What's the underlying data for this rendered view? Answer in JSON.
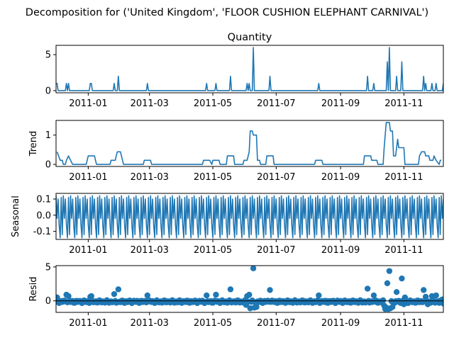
{
  "figure": {
    "suptitle": "Decomposition for ('United Kingdom', 'FLOOR CUSHION ELEPHANT CARNIVAL')"
  },
  "colors": {
    "series": "#1f77b4",
    "axis": "#000000",
    "background": "#ffffff"
  },
  "chart_data": [
    {
      "type": "line",
      "title": "Quantity",
      "ylabel": "",
      "xlim": [
        "2010-12-01",
        "2011-12-09"
      ],
      "ylim": [
        -0.3,
        6.3
      ],
      "yticks": [
        0,
        5
      ],
      "xticks": [
        "2011-01",
        "2011-03",
        "2011-05",
        "2011-07",
        "2011-09",
        "2011-11"
      ],
      "baseline": 0,
      "points": [
        [
          "2010-12-01",
          1
        ],
        [
          "2010-12-02",
          1
        ],
        [
          "2010-12-03",
          0
        ],
        [
          "2010-12-10",
          0
        ],
        [
          "2010-12-11",
          1
        ],
        [
          "2010-12-12",
          0
        ],
        [
          "2010-12-13",
          1
        ],
        [
          "2010-12-14",
          0
        ],
        [
          "2011-01-02",
          0
        ],
        [
          "2011-01-03",
          1
        ],
        [
          "2011-01-04",
          1
        ],
        [
          "2011-01-05",
          0
        ],
        [
          "2011-01-25",
          0
        ],
        [
          "2011-01-26",
          1
        ],
        [
          "2011-01-27",
          0
        ],
        [
          "2011-01-29",
          0
        ],
        [
          "2011-01-30",
          2
        ],
        [
          "2011-01-31",
          0
        ],
        [
          "2011-02-26",
          0
        ],
        [
          "2011-02-27",
          1
        ],
        [
          "2011-02-28",
          0
        ],
        [
          "2011-04-24",
          0
        ],
        [
          "2011-04-25",
          1
        ],
        [
          "2011-04-26",
          0
        ],
        [
          "2011-05-03",
          0
        ],
        [
          "2011-05-04",
          1
        ],
        [
          "2011-05-05",
          0
        ],
        [
          "2011-05-17",
          0
        ],
        [
          "2011-05-18",
          2
        ],
        [
          "2011-05-19",
          0
        ],
        [
          "2011-06-02",
          0
        ],
        [
          "2011-06-03",
          1
        ],
        [
          "2011-06-04",
          0
        ],
        [
          "2011-06-05",
          1
        ],
        [
          "2011-06-06",
          0
        ],
        [
          "2011-06-08",
          0
        ],
        [
          "2011-06-09",
          6
        ],
        [
          "2011-06-10",
          0
        ],
        [
          "2011-06-24",
          0
        ],
        [
          "2011-06-25",
          2
        ],
        [
          "2011-06-26",
          0
        ],
        [
          "2011-08-10",
          0
        ],
        [
          "2011-08-11",
          1
        ],
        [
          "2011-08-12",
          0
        ],
        [
          "2011-09-26",
          0
        ],
        [
          "2011-09-27",
          2
        ],
        [
          "2011-09-28",
          0
        ],
        [
          "2011-10-02",
          0
        ],
        [
          "2011-10-03",
          1
        ],
        [
          "2011-10-04",
          0
        ],
        [
          "2011-10-15",
          0
        ],
        [
          "2011-10-16",
          4
        ],
        [
          "2011-10-17",
          0
        ],
        [
          "2011-10-18",
          6
        ],
        [
          "2011-10-19",
          0
        ],
        [
          "2011-10-24",
          0
        ],
        [
          "2011-10-25",
          2
        ],
        [
          "2011-10-26",
          0
        ],
        [
          "2011-10-29",
          0
        ],
        [
          "2011-10-30",
          4
        ],
        [
          "2011-10-31",
          0
        ],
        [
          "2011-11-19",
          0
        ],
        [
          "2011-11-20",
          2
        ],
        [
          "2011-11-21",
          0
        ],
        [
          "2011-11-22",
          1
        ],
        [
          "2011-11-23",
          0
        ],
        [
          "2011-11-27",
          0
        ],
        [
          "2011-11-28",
          1
        ],
        [
          "2011-11-29",
          0
        ],
        [
          "2011-12-01",
          0
        ],
        [
          "2011-12-02",
          1
        ],
        [
          "2011-12-03",
          0
        ],
        [
          "2011-12-08",
          0
        ],
        [
          "2011-12-09",
          1
        ]
      ]
    },
    {
      "type": "line",
      "title": "",
      "ylabel": "Trend",
      "xlim": [
        "2010-12-01",
        "2011-12-09"
      ],
      "ylim": [
        -0.07,
        1.5
      ],
      "yticks": [
        0,
        1
      ],
      "xticks": [
        "2011-01",
        "2011-03",
        "2011-05",
        "2011-07",
        "2011-09",
        "2011-11"
      ],
      "baseline": 0,
      "points": [
        [
          "2010-12-02",
          0.43
        ],
        [
          "2010-12-05",
          0.14
        ],
        [
          "2010-12-07",
          0.14
        ],
        [
          "2010-12-08",
          0.0
        ],
        [
          "2010-12-10",
          0.0
        ],
        [
          "2010-12-11",
          0.14
        ],
        [
          "2010-12-13",
          0.29
        ],
        [
          "2010-12-15",
          0.14
        ],
        [
          "2010-12-17",
          0.0
        ],
        [
          "2010-12-30",
          0.0
        ],
        [
          "2010-12-31",
          0.14
        ],
        [
          "2011-01-01",
          0.29
        ],
        [
          "2011-01-07",
          0.29
        ],
        [
          "2011-01-08",
          0.14
        ],
        [
          "2011-01-09",
          0.0
        ],
        [
          "2011-01-22",
          0.0
        ],
        [
          "2011-01-23",
          0.14
        ],
        [
          "2011-01-27",
          0.14
        ],
        [
          "2011-01-28",
          0.29
        ],
        [
          "2011-01-29",
          0.43
        ],
        [
          "2011-02-01",
          0.43
        ],
        [
          "2011-02-02",
          0.29
        ],
        [
          "2011-02-03",
          0.14
        ],
        [
          "2011-02-04",
          0.0
        ],
        [
          "2011-02-23",
          0.0
        ],
        [
          "2011-02-24",
          0.14
        ],
        [
          "2011-03-02",
          0.14
        ],
        [
          "2011-03-03",
          0.0
        ],
        [
          "2011-04-21",
          0.0
        ],
        [
          "2011-04-22",
          0.14
        ],
        [
          "2011-04-28",
          0.14
        ],
        [
          "2011-04-30",
          0.0
        ],
        [
          "2011-05-01",
          0.14
        ],
        [
          "2011-05-07",
          0.14
        ],
        [
          "2011-05-08",
          0.0
        ],
        [
          "2011-05-14",
          0.0
        ],
        [
          "2011-05-15",
          0.29
        ],
        [
          "2011-05-21",
          0.29
        ],
        [
          "2011-05-22",
          0.0
        ],
        [
          "2011-05-30",
          0.0
        ],
        [
          "2011-05-31",
          0.14
        ],
        [
          "2011-06-03",
          0.14
        ],
        [
          "2011-06-05",
          0.43
        ],
        [
          "2011-06-06",
          1.14
        ],
        [
          "2011-06-08",
          1.14
        ],
        [
          "2011-06-09",
          1.0
        ],
        [
          "2011-06-12",
          1.0
        ],
        [
          "2011-06-13",
          0.14
        ],
        [
          "2011-06-15",
          0.14
        ],
        [
          "2011-06-16",
          0.0
        ],
        [
          "2011-06-21",
          0.0
        ],
        [
          "2011-06-22",
          0.29
        ],
        [
          "2011-06-28",
          0.29
        ],
        [
          "2011-06-29",
          0.0
        ],
        [
          "2011-08-07",
          0.0
        ],
        [
          "2011-08-08",
          0.14
        ],
        [
          "2011-08-14",
          0.14
        ],
        [
          "2011-08-15",
          0.0
        ],
        [
          "2011-09-23",
          0.0
        ],
        [
          "2011-09-24",
          0.29
        ],
        [
          "2011-09-30",
          0.29
        ],
        [
          "2011-10-01",
          0.14
        ],
        [
          "2011-10-06",
          0.14
        ],
        [
          "2011-10-07",
          0.0
        ],
        [
          "2011-10-12",
          0.0
        ],
        [
          "2011-10-13",
          0.57
        ],
        [
          "2011-10-15",
          1.43
        ],
        [
          "2011-10-18",
          1.43
        ],
        [
          "2011-10-19",
          1.14
        ],
        [
          "2011-10-21",
          1.14
        ],
        [
          "2011-10-22",
          0.29
        ],
        [
          "2011-10-24",
          0.29
        ],
        [
          "2011-10-26",
          0.86
        ],
        [
          "2011-10-27",
          0.57
        ],
        [
          "2011-10-30",
          0.57
        ],
        [
          "2011-10-31",
          0.57
        ],
        [
          "2011-11-01",
          0.57
        ],
        [
          "2011-11-02",
          0.0
        ],
        [
          "2011-11-15",
          0.0
        ],
        [
          "2011-11-16",
          0.29
        ],
        [
          "2011-11-18",
          0.43
        ],
        [
          "2011-11-21",
          0.43
        ],
        [
          "2011-11-22",
          0.29
        ],
        [
          "2011-11-25",
          0.29
        ],
        [
          "2011-11-26",
          0.14
        ],
        [
          "2011-11-29",
          0.14
        ],
        [
          "2011-11-30",
          0.29
        ],
        [
          "2011-12-02",
          0.14
        ],
        [
          "2011-12-05",
          0.0
        ],
        [
          "2011-12-06",
          0.14
        ],
        [
          "2011-12-07",
          0.14
        ]
      ]
    },
    {
      "type": "line",
      "title": "",
      "ylabel": "Seasonal",
      "xlim": [
        "2010-12-01",
        "2011-12-09"
      ],
      "ylim": [
        -0.15,
        0.135
      ],
      "yticks": [
        -0.1,
        0.0,
        0.1
      ],
      "xticks": [
        "2011-01",
        "2011-03",
        "2011-05",
        "2011-07",
        "2011-09",
        "2011-11"
      ],
      "start": "2010-12-01",
      "end": "2011-12-09",
      "weekly_pattern": [
        0.12,
        -0.02,
        0.1,
        -0.06,
        -0.14,
        0.11,
        -0.12
      ]
    },
    {
      "type": "scatter",
      "title": "",
      "ylabel": "Resid",
      "xlim": [
        "2010-12-01",
        "2011-12-09"
      ],
      "ylim": [
        -1.7,
        5.2
      ],
      "yticks": [
        0,
        5
      ],
      "xticks": [
        "2011-01",
        "2011-03",
        "2011-05",
        "2011-07",
        "2011-09",
        "2011-11"
      ],
      "baseline": 0,
      "notable_points": [
        [
          "2010-12-01",
          0.3
        ],
        [
          "2010-12-02",
          0.5
        ],
        [
          "2010-12-11",
          0.9
        ],
        [
          "2010-12-13",
          0.7
        ],
        [
          "2011-01-03",
          0.6
        ],
        [
          "2011-01-04",
          0.7
        ],
        [
          "2011-01-26",
          1.0
        ],
        [
          "2011-01-30",
          1.7
        ],
        [
          "2011-02-27",
          0.8
        ],
        [
          "2011-04-25",
          0.8
        ],
        [
          "2011-05-04",
          0.9
        ],
        [
          "2011-05-18",
          1.7
        ],
        [
          "2011-06-02",
          -0.6
        ],
        [
          "2011-06-03",
          0.7
        ],
        [
          "2011-06-05",
          0.9
        ],
        [
          "2011-06-06",
          -1.1
        ],
        [
          "2011-06-09",
          4.8
        ],
        [
          "2011-06-10",
          -1.0
        ],
        [
          "2011-06-12",
          -0.9
        ],
        [
          "2011-06-25",
          1.6
        ],
        [
          "2011-08-11",
          0.8
        ],
        [
          "2011-09-27",
          1.8
        ],
        [
          "2011-10-03",
          0.8
        ],
        [
          "2011-10-13",
          -0.7
        ],
        [
          "2011-10-14",
          -1.2
        ],
        [
          "2011-10-15",
          -1.0
        ],
        [
          "2011-10-16",
          2.6
        ],
        [
          "2011-10-17",
          -1.2
        ],
        [
          "2011-10-18",
          4.4
        ],
        [
          "2011-10-19",
          -1.1
        ],
        [
          "2011-10-21",
          -0.9
        ],
        [
          "2011-10-23",
          -0.3
        ],
        [
          "2011-10-25",
          1.3
        ],
        [
          "2011-10-30",
          3.3
        ],
        [
          "2011-11-01",
          -0.5
        ],
        [
          "2011-11-02",
          0.5
        ],
        [
          "2011-11-20",
          1.6
        ],
        [
          "2011-11-22",
          0.6
        ],
        [
          "2011-11-24",
          -0.5
        ],
        [
          "2011-11-28",
          0.7
        ],
        [
          "2011-12-02",
          0.8
        ],
        [
          "2011-12-05",
          -0.3
        ],
        [
          "2011-12-08",
          0.2
        ],
        [
          "2011-12-09",
          -0.4
        ]
      ]
    }
  ]
}
